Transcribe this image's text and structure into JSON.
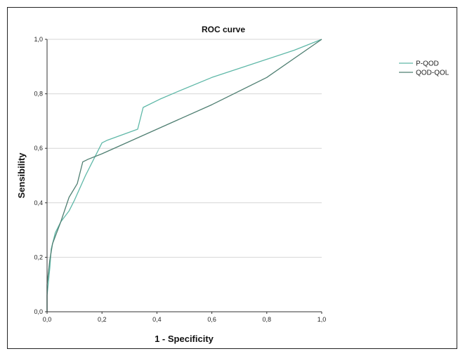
{
  "chart_data": {
    "type": "line",
    "title": "ROC curve",
    "xlabel": "1 - Specificity",
    "ylabel": "Sensibility",
    "xlim": [
      0,
      1
    ],
    "ylim": [
      0,
      1
    ],
    "x_ticks": [
      "0,0",
      "0,2",
      "0,4",
      "0,6",
      "0,8",
      "1,0"
    ],
    "y_ticks": [
      "0,0",
      "0,2",
      "0,4",
      "0,6",
      "0,8",
      "1,0"
    ],
    "grid": "horizontal",
    "legend_position": "right",
    "series": [
      {
        "name": "P-QOD",
        "color": "#5fb8a8",
        "points": [
          [
            0,
            0
          ],
          [
            0.0,
            0.06
          ],
          [
            0.01,
            0.16
          ],
          [
            0.015,
            0.23
          ],
          [
            0.03,
            0.29
          ],
          [
            0.05,
            0.33
          ],
          [
            0.08,
            0.37
          ],
          [
            0.1,
            0.41
          ],
          [
            0.14,
            0.5
          ],
          [
            0.2,
            0.62
          ],
          [
            0.22,
            0.63
          ],
          [
            0.33,
            0.67
          ],
          [
            0.35,
            0.75
          ],
          [
            0.41,
            0.78
          ],
          [
            0.48,
            0.81
          ],
          [
            0.6,
            0.86
          ],
          [
            0.75,
            0.91
          ],
          [
            0.9,
            0.96
          ],
          [
            1.0,
            1.0
          ]
        ]
      },
      {
        "name": "QOD-QOL",
        "color": "#4f7f72",
        "points": [
          [
            0,
            0
          ],
          [
            0.0,
            0.1
          ],
          [
            0.01,
            0.19
          ],
          [
            0.02,
            0.25
          ],
          [
            0.05,
            0.33
          ],
          [
            0.08,
            0.42
          ],
          [
            0.11,
            0.47
          ],
          [
            0.13,
            0.55
          ],
          [
            0.15,
            0.56
          ],
          [
            0.2,
            0.58
          ],
          [
            0.4,
            0.67
          ],
          [
            0.6,
            0.76
          ],
          [
            0.8,
            0.86
          ],
          [
            1.0,
            1.0
          ]
        ]
      }
    ]
  }
}
